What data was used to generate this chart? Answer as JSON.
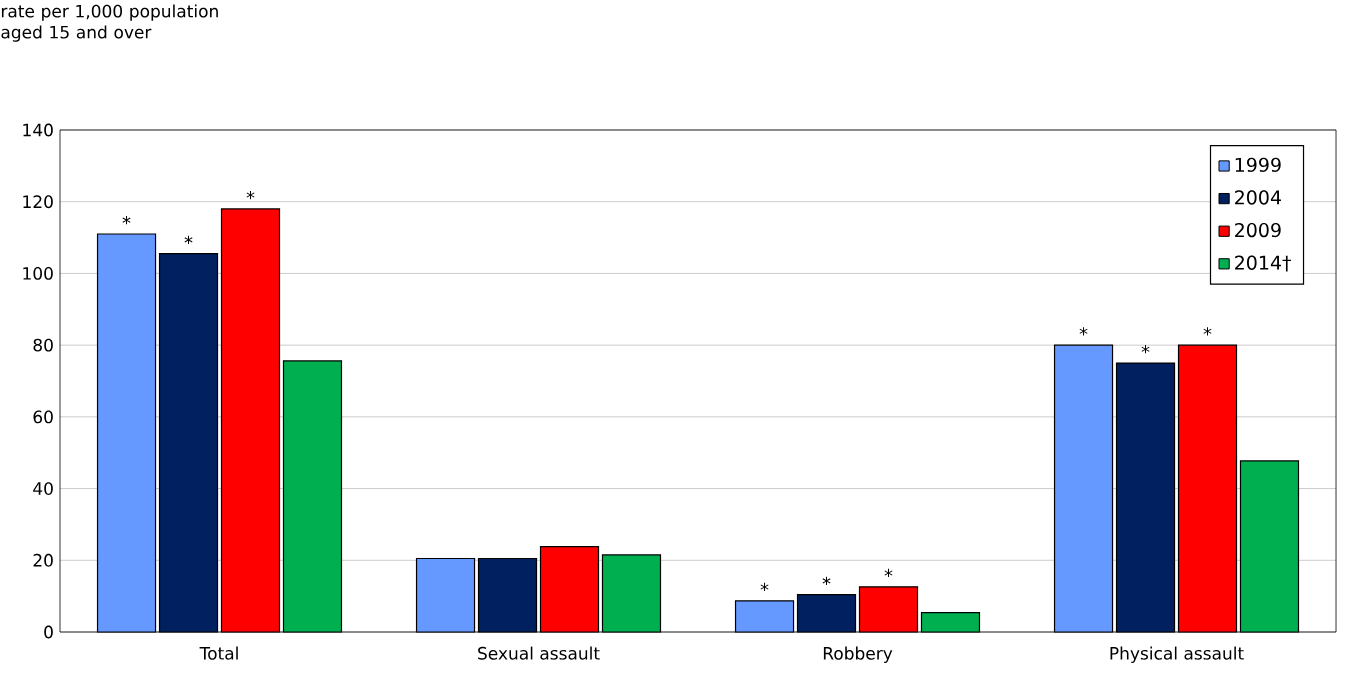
{
  "chart_data": {
    "type": "bar",
    "ylabel": "rate per 1,000 population aged 15 and over",
    "categories": [
      "Total",
      "Sexual assault",
      "Robbery",
      "Physical assault"
    ],
    "series": [
      {
        "name": "1999",
        "color": "#6699ff",
        "values": [
          111,
          20.5,
          8.7,
          80
        ],
        "value_labels": [
          "*",
          null,
          "*",
          "*"
        ]
      },
      {
        "name": "2004",
        "color": "#002060",
        "values": [
          105.5,
          20.5,
          10.4,
          75
        ],
        "value_labels": [
          "*",
          null,
          "*",
          "*"
        ]
      },
      {
        "name": "2009",
        "color": "#ff0000",
        "values": [
          118,
          23.8,
          12.6,
          80
        ],
        "value_labels": [
          "*",
          null,
          "*",
          "*"
        ]
      },
      {
        "name": "2014†",
        "color": "#00b050",
        "values": [
          75.6,
          21.5,
          5.4,
          47.7
        ],
        "value_labels": [
          null,
          null,
          null,
          null
        ]
      }
    ],
    "ylim": [
      0,
      140
    ],
    "yticks": [
      0,
      20,
      40,
      60,
      80,
      100,
      120,
      140
    ],
    "grid": "y",
    "legend": "top right"
  }
}
